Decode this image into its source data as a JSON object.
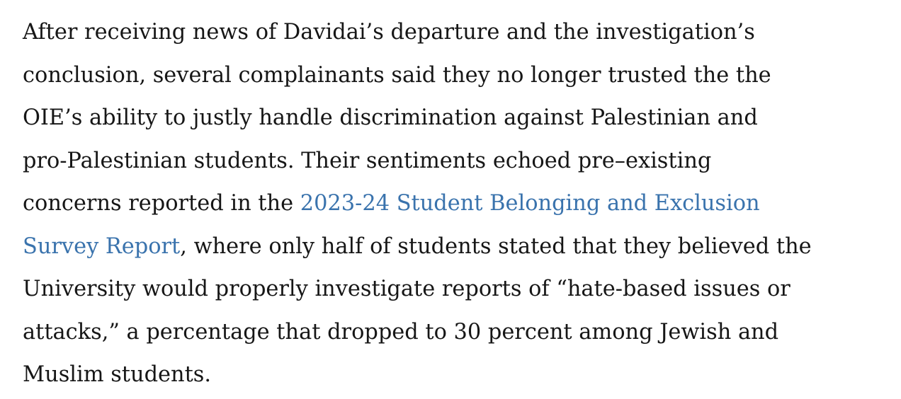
{
  "article": {
    "line1": "After receiving news of Davidai’s departure and the investigation’s",
    "line2": "conclusion, several complainants said they no longer trusted the the",
    "line3": "OIE’s ability to justly handle discrimination against Palestinian and",
    "line4": "pro-Palestinian students. Their sentiments echoed pre–existing",
    "line5_before": "concerns reported in the ",
    "link_part1": "2023-24 Student Belonging and Exclusion",
    "link_part2": "Survey Report",
    "line6_after": ", where only half of students stated that they believed the",
    "line7": "University would properly investigate reports of “hate-based issues or",
    "line8": "attacks,” a percentage that dropped to 30 percent among Jewish and",
    "line9": "Muslim students."
  },
  "colors": {
    "text": "#161616",
    "link": "#3a73ad",
    "background": "#ffffff"
  }
}
